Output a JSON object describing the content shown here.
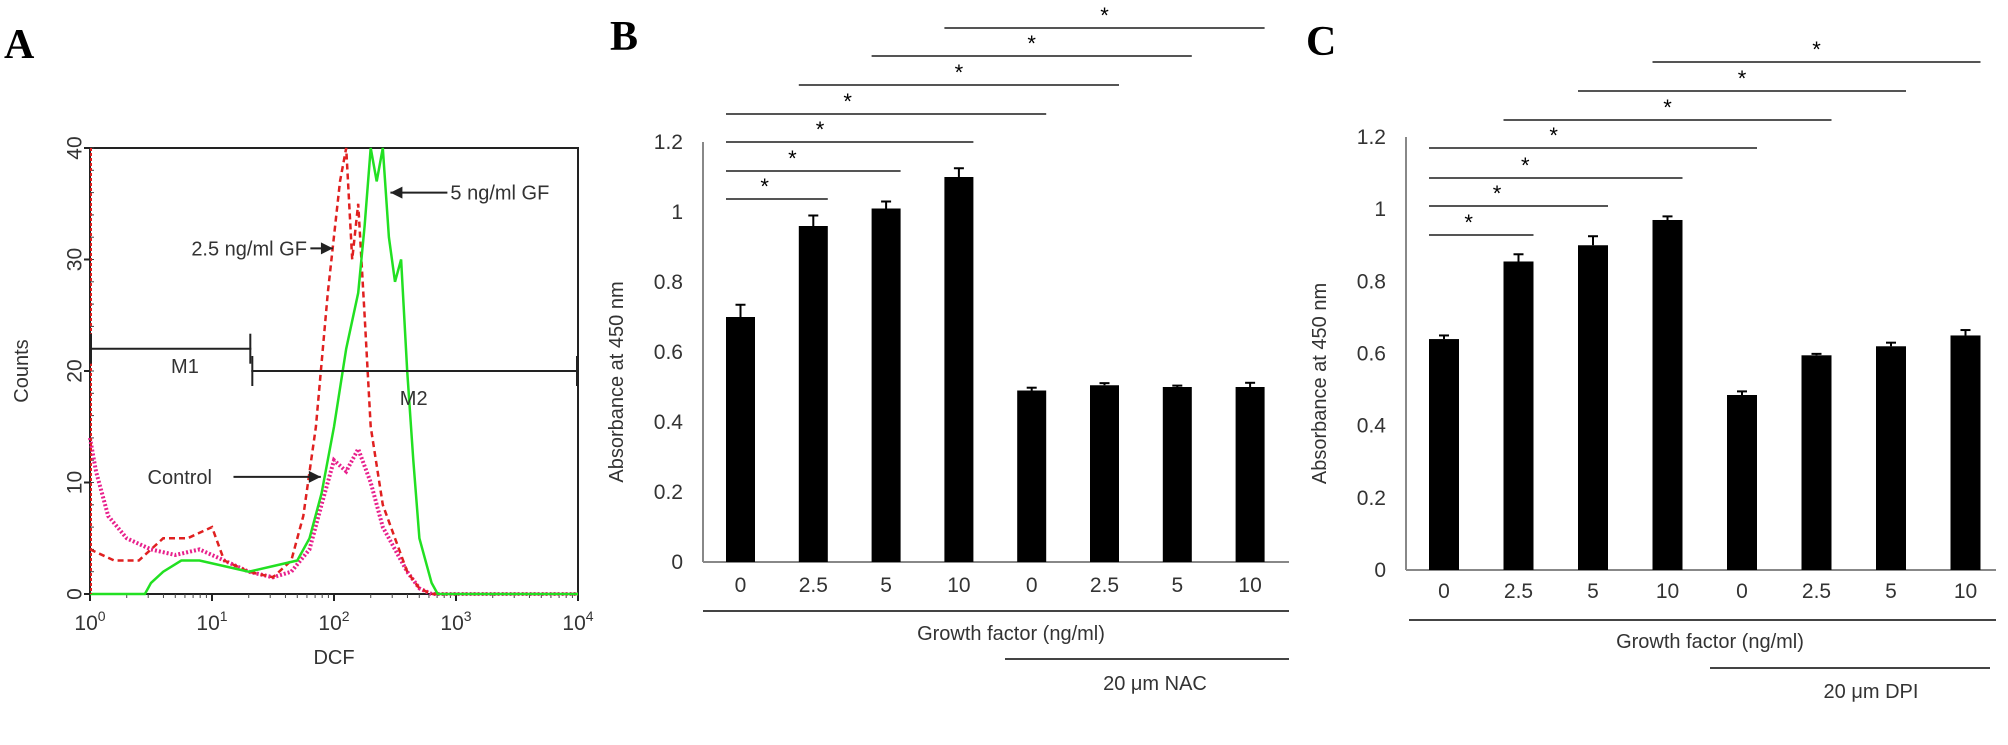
{
  "chart_data": [
    {
      "panel": "A",
      "type": "line",
      "xlabel": "DCF",
      "ylabel": "Counts",
      "xscale": "log",
      "xlim": [
        1,
        10000
      ],
      "ylim": [
        0,
        40
      ],
      "xticks": [
        "10^0",
        "10^1",
        "10^2",
        "10^3",
        "10^4"
      ],
      "yticks": [
        "0",
        "10",
        "20",
        "30",
        "40"
      ],
      "grid": false,
      "series": [
        {
          "name": "Control",
          "color": "#e8208c",
          "style": "dotted",
          "x": [
            1,
            1.12,
            1.41,
            2,
            3.16,
            5,
            7.9,
            12.6,
            20,
            31.6,
            44.7,
            63,
            79,
            100,
            126,
            158,
            200,
            251,
            316,
            398,
            501,
            631,
            10000
          ],
          "y": [
            14,
            11,
            7,
            5,
            4,
            3.5,
            4,
            3,
            2,
            1.5,
            2,
            4,
            8,
            12,
            11,
            13,
            10,
            6,
            4,
            2,
            0.5,
            0,
            0
          ]
        },
        {
          "name": "2.5 ng/ml GF",
          "color": "#e02020",
          "style": "dashed",
          "x": [
            1,
            1.58,
            2.51,
            3.98,
            6.3,
            10,
            12.6,
            20,
            31.6,
            44.7,
            56,
            71,
            89,
            112,
            126,
            141,
            158,
            178,
            200,
            251,
            316,
            398,
            501,
            631,
            10000
          ],
          "y": [
            4,
            3,
            3,
            5,
            5,
            6,
            3,
            2,
            1.5,
            3,
            7,
            15,
            27,
            37,
            40,
            30,
            35,
            25,
            15,
            8,
            5,
            2,
            0.5,
            0,
            0
          ]
        },
        {
          "name": "5 ng/ml GF",
          "color": "#22e022",
          "style": "solid",
          "x": [
            1,
            2.82,
            3.16,
            3.98,
            5.6,
            7.9,
            12.6,
            20,
            31.6,
            50,
            63,
            79,
            100,
            126,
            158,
            178,
            200,
            224,
            251,
            282,
            316,
            355,
            398,
            447,
            501,
            631,
            708,
            10000
          ],
          "y": [
            0,
            0,
            1,
            2,
            3,
            3,
            2.5,
            2,
            2.5,
            3,
            5,
            9,
            15,
            22,
            27,
            33,
            40,
            37,
            40,
            32,
            28,
            30,
            20,
            12,
            5,
            1,
            0,
            0
          ]
        }
      ],
      "markers": [
        {
          "label": "M1",
          "range": [
            1,
            21
          ],
          "counts": 22
        },
        {
          "label": "M2",
          "range": [
            21,
            10000
          ],
          "counts": 20
        }
      ],
      "annotations": [
        "5 ng/ml GF",
        "2.5 ng/ml GF",
        "Control"
      ]
    },
    {
      "panel": "B",
      "type": "bar",
      "ylabel": "Absorbance at 450 nm",
      "ylim": [
        0,
        1.2
      ],
      "yticks": [
        "0",
        "0.2",
        "0.4",
        "0.6",
        "0.8",
        "1",
        "1.2"
      ],
      "categories": [
        "0",
        "2.5",
        "5",
        "10",
        "0",
        "2.5",
        "5",
        "10"
      ],
      "values": [
        0.7,
        0.96,
        1.01,
        1.1,
        0.49,
        0.505,
        0.5,
        0.5
      ],
      "errors": [
        0.035,
        0.03,
        0.02,
        0.025,
        0.008,
        0.006,
        0.004,
        0.012
      ],
      "bar_color": "#000000",
      "group_label": "Growth factor (ng/ml)",
      "treatment_label": "20 μm NAC",
      "significance": [
        [
          0,
          1
        ],
        [
          0,
          2
        ],
        [
          0,
          3
        ],
        [
          0,
          4
        ],
        [
          1,
          5
        ],
        [
          2,
          6
        ],
        [
          3,
          7
        ]
      ],
      "significance_mark": "*"
    },
    {
      "panel": "C",
      "type": "bar",
      "ylabel": "Absorbance at 450 nm",
      "ylim": [
        0,
        1.2
      ],
      "yticks": [
        "0",
        "0.2",
        "0.4",
        "0.6",
        "0.8",
        "1",
        "1.2"
      ],
      "categories": [
        "0",
        "2.5",
        "5",
        "10",
        "0",
        "2.5",
        "5",
        "10"
      ],
      "values": [
        0.64,
        0.855,
        0.9,
        0.97,
        0.485,
        0.595,
        0.62,
        0.65
      ],
      "errors": [
        0.01,
        0.02,
        0.025,
        0.01,
        0.01,
        0.004,
        0.01,
        0.015
      ],
      "bar_color": "#000000",
      "group_label": "Growth factor (ng/ml)",
      "treatment_label": "20 μm DPI",
      "significance": [
        [
          0,
          1
        ],
        [
          0,
          2
        ],
        [
          0,
          3
        ],
        [
          0,
          4
        ],
        [
          1,
          5
        ],
        [
          2,
          6
        ],
        [
          3,
          7
        ]
      ],
      "significance_mark": "*"
    }
  ]
}
